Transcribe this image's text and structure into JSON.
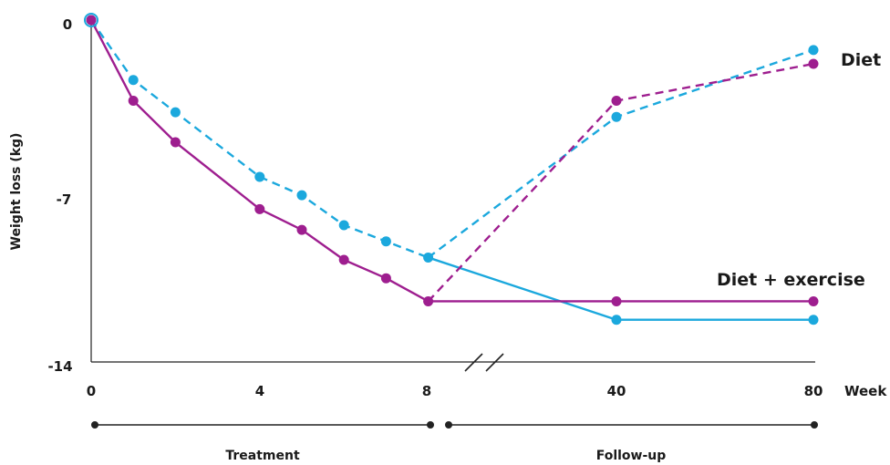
{
  "chart_data": {
    "type": "line",
    "ylabel": "Weight loss (kg)",
    "xlabel": "Week",
    "x_tick_labels": [
      "0",
      "4",
      "8",
      "40",
      "80"
    ],
    "y_tick_labels": [
      "0",
      "-7",
      "-14"
    ],
    "ylim": [
      -14,
      0
    ],
    "axis_break": "between week 8 and week 40",
    "grid": false,
    "colors": {
      "cyan": "#1ba8dd",
      "magenta": "#9e1e8f",
      "axis": "#222222"
    },
    "phases": [
      {
        "label": "Treatment",
        "range": [
          "0",
          "8"
        ]
      },
      {
        "label": "Follow-up",
        "range": [
          "8",
          "80"
        ]
      }
    ],
    "series_labels": [
      "Diet",
      "Diet + exercise"
    ],
    "series": [
      {
        "color": "#1ba8dd",
        "segments": [
          {
            "style": "dashed",
            "points": [
              [
                0,
                0
              ],
              [
                1,
                -2.6
              ],
              [
                2,
                -4.0
              ],
              [
                4,
                -6.8
              ],
              [
                5,
                -7.6
              ],
              [
                6,
                -8.9
              ],
              [
                7,
                -9.6
              ],
              [
                8,
                -10.3
              ]
            ]
          },
          {
            "style": "dashed",
            "points": [
              [
                8,
                -10.3
              ],
              [
                40,
                -4.2
              ],
              [
                80,
                -1.3
              ]
            ]
          },
          {
            "style": "solid",
            "points": [
              [
                8,
                -10.3
              ],
              [
                40,
                -13.0
              ],
              [
                80,
                -13.0
              ]
            ]
          }
        ]
      },
      {
        "color": "#9e1e8f",
        "segments": [
          {
            "style": "solid",
            "points": [
              [
                0,
                0
              ],
              [
                1,
                -3.5
              ],
              [
                2,
                -5.3
              ],
              [
                4,
                -8.2
              ],
              [
                5,
                -9.1
              ],
              [
                6,
                -10.4
              ],
              [
                7,
                -11.2
              ],
              [
                8,
                -12.2
              ]
            ]
          },
          {
            "style": "dashed",
            "points": [
              [
                8,
                -12.2
              ],
              [
                40,
                -3.5
              ],
              [
                80,
                -1.9
              ]
            ]
          },
          {
            "style": "solid",
            "points": [
              [
                8,
                -12.2
              ],
              [
                40,
                -12.2
              ],
              [
                80,
                -12.2
              ]
            ]
          }
        ]
      }
    ]
  }
}
